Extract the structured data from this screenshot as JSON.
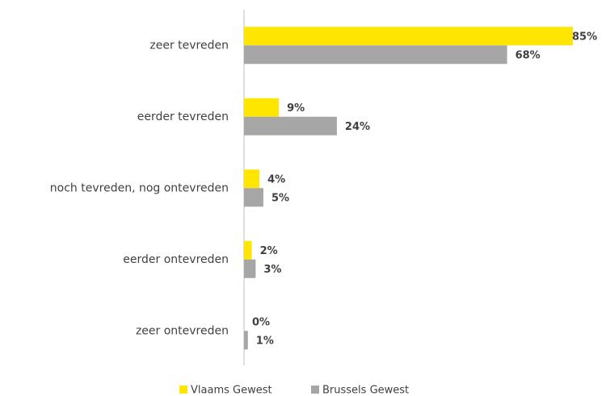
{
  "chart_data": {
    "type": "bar",
    "orientation": "horizontal",
    "categories": [
      "zeer tevreden",
      "eerder tevreden",
      "noch tevreden, nog ontevreden",
      "eerder ontevreden",
      "zeer ontevreden"
    ],
    "series": [
      {
        "name": "Vlaams Gewest",
        "color": "#ffe600",
        "values": [
          85,
          9,
          4,
          2,
          0
        ],
        "value_labels": [
          "85%",
          "9%",
          "4%",
          "2%",
          "0%"
        ]
      },
      {
        "name": "Brussels Gewest",
        "color": "#a6a6a6",
        "values": [
          68,
          24,
          5,
          3,
          1
        ],
        "value_labels": [
          "68%",
          "24%",
          "5%",
          "3%",
          "1%"
        ]
      }
    ],
    "legend": "bottom"
  }
}
